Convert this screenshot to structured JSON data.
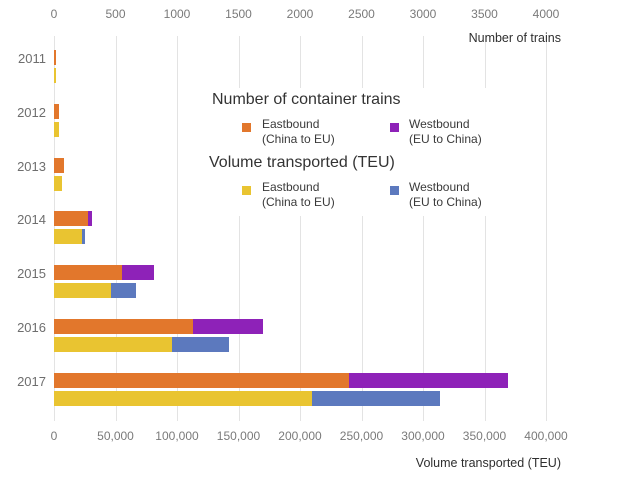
{
  "chart_data": {
    "type": "bar",
    "orientation": "horizontal",
    "grid": true,
    "years": [
      "2011",
      "2012",
      "2013",
      "2014",
      "2015",
      "2016",
      "2017"
    ],
    "trains_axis": {
      "title": "Number of trains",
      "position": "top",
      "ticks": [
        "0",
        "500",
        "1000",
        "1500",
        "2000",
        "2500",
        "3000",
        "3500",
        "4000"
      ],
      "max": 4000,
      "series": [
        {
          "name": "Eastbound (China to EU)",
          "color": "#e2772c",
          "values": [
            17,
            42,
            80,
            280,
            550,
            1130,
            2400
          ]
        },
        {
          "name": "Westbound (EU to China)",
          "color": "#8e22b8",
          "values": [
            0,
            0,
            0,
            30,
            265,
            570,
            1290
          ]
        }
      ]
    },
    "volume_axis": {
      "title": "Volume transported (TEU)",
      "position": "bottom",
      "ticks": [
        "0",
        "50,000",
        "100,000",
        "150,000",
        "200,000",
        "250,000",
        "300,000",
        "350,000",
        "400,000"
      ],
      "max": 400000,
      "series": [
        {
          "name": "Eastbound (China to EU)",
          "color": "#e9c431",
          "values": [
            1400,
            3700,
            6900,
            23000,
            46000,
            96000,
            210000
          ]
        },
        {
          "name": "Westbound (EU to China)",
          "color": "#5c79be",
          "values": [
            0,
            0,
            0,
            2500,
            21000,
            46000,
            104000
          ]
        }
      ]
    },
    "legend": {
      "trains_title": "Number of container trains",
      "volume_title": "Volume transported (TEU)",
      "eastbound_line1": "Eastbound",
      "eastbound_line2": "(China to EU)",
      "westbound_line1": "Westbound",
      "westbound_line2": "(EU to China)",
      "colors": {
        "trains_eastbound": "#e2772c",
        "trains_westbound": "#8e22b8",
        "volume_eastbound": "#e9c431",
        "volume_westbound": "#5c79be"
      }
    }
  }
}
